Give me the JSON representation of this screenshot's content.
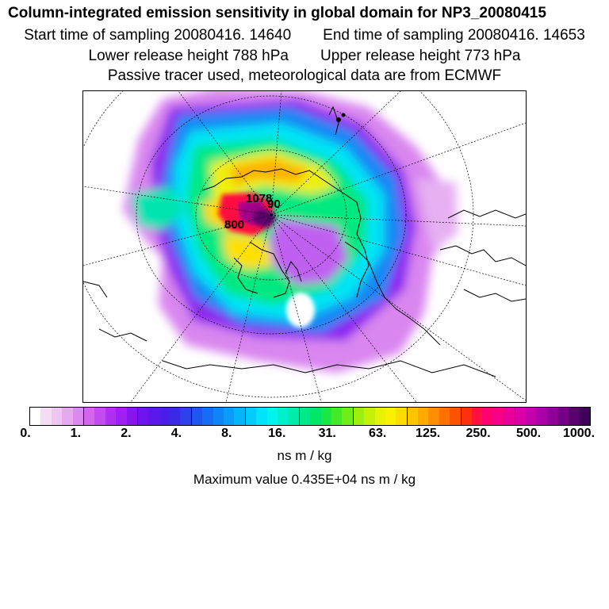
{
  "header": {
    "title": "Column-integrated emission sensitivity in global domain for NP3_20080415",
    "start_time": "Start time of sampling 20080416. 14640",
    "end_time": "End time of sampling 20080416. 14653",
    "lower_height": "Lower release height  788 hPa",
    "upper_height": "Upper release height  773 hPa",
    "tracer_note": "Passive tracer used, meteorological data are from ECMWF"
  },
  "map": {
    "annotations": [
      "1078",
      "90",
      "800"
    ]
  },
  "legend": {
    "tick_labels": [
      "0.",
      "1.",
      "2.",
      "4.",
      "8.",
      "16.",
      "31.",
      "63.",
      "125.",
      "250.",
      "500.",
      "1000."
    ],
    "colors": [
      "#ffffff",
      "#f5dcf5",
      "#efc6f2",
      "#e6a8ee",
      "#dd88ec",
      "#d466ee",
      "#c24cf0",
      "#b030f2",
      "#9e20f2",
      "#8a14f0",
      "#6e14ee",
      "#5a18ea",
      "#4a1ee8",
      "#3a2ae6",
      "#2c40ec",
      "#1e56f0",
      "#166cf2",
      "#1084f4",
      "#0a9cf6",
      "#06b4f8",
      "#04ccfa",
      "#00e4fc",
      "#00f4ee",
      "#00f0cc",
      "#00ecaa",
      "#00e888",
      "#00e666",
      "#1ae844",
      "#44ea2a",
      "#70ec1a",
      "#9cee10",
      "#c4f00a",
      "#e6f208",
      "#faf004",
      "#fedc02",
      "#ffc400",
      "#ffaa00",
      "#ff8e00",
      "#ff7000",
      "#ff5200",
      "#ff3010",
      "#ff1040",
      "#ff0070",
      "#f60088",
      "#e8009a",
      "#d800a6",
      "#c400aa",
      "#aa00a8",
      "#8e0098",
      "#740084",
      "#58006c",
      "#40005a"
    ],
    "unit": "ns m / kg",
    "max_value": "Maximum value  0.435E+04 ns m / kg"
  }
}
